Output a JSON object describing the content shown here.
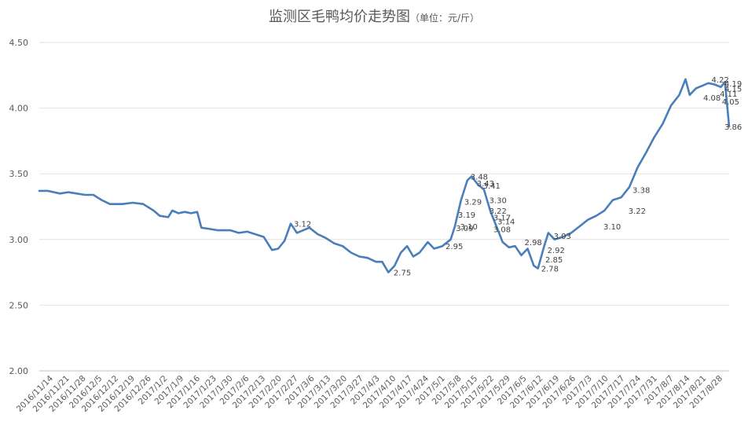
{
  "chart_data": {
    "type": "line",
    "title": "监测区毛鸭均价走势图",
    "subtitle": "（单位：元/斤）",
    "xlabel": "",
    "ylabel": "",
    "ylim": [
      2.0,
      4.5
    ],
    "yticks": [
      "2.00",
      "2.50",
      "3.00",
      "3.50",
      "4.00",
      "4.50"
    ],
    "grid": true,
    "legend": "none",
    "line_color": "#4a7ebb",
    "x_tick_labels": [
      "2016/11/14",
      "2016/11/21",
      "2016/11/28",
      "2016/12/5",
      "2016/12/12",
      "2016/12/19",
      "2016/12/26",
      "2017/1/2",
      "2017/1/9",
      "2017/1/16",
      "2017/1/23",
      "2017/1/30",
      "2017/2/6",
      "2017/2/13",
      "2017/2/20",
      "2017/2/27",
      "2017/3/6",
      "2017/3/13",
      "2017/3/20",
      "2017/3/27",
      "2017/4/3",
      "2017/4/10",
      "2017/4/17",
      "2017/4/24",
      "2017/5/1",
      "2017/5/8",
      "2017/5/15",
      "2017/5/22",
      "2017/5/29",
      "2017/6/5",
      "2017/6/12",
      "2017/6/19",
      "2017/6/26",
      "2017/7/3",
      "2017/7/10",
      "2017/7/17",
      "2017/7/24",
      "2017/7/31",
      "2017/8/7",
      "2017/8/14",
      "2017/8/21",
      "2017/8/28"
    ],
    "x_keypoints": [
      {
        "i": 0,
        "v": 3.37
      },
      {
        "i": 4,
        "v": 3.37
      },
      {
        "i": 10,
        "v": 3.35
      },
      {
        "i": 14,
        "v": 3.36
      },
      {
        "i": 18,
        "v": 3.35
      },
      {
        "i": 22,
        "v": 3.34
      },
      {
        "i": 26,
        "v": 3.34
      },
      {
        "i": 30,
        "v": 3.3
      },
      {
        "i": 34,
        "v": 3.27
      },
      {
        "i": 40,
        "v": 3.27
      },
      {
        "i": 45,
        "v": 3.28
      },
      {
        "i": 50,
        "v": 3.27
      },
      {
        "i": 55,
        "v": 3.22
      },
      {
        "i": 58,
        "v": 3.18
      },
      {
        "i": 62,
        "v": 3.17
      },
      {
        "i": 64,
        "v": 3.22
      },
      {
        "i": 67,
        "v": 3.2
      },
      {
        "i": 70,
        "v": 3.21
      },
      {
        "i": 73,
        "v": 3.2
      },
      {
        "i": 76,
        "v": 3.21
      },
      {
        "i": 78,
        "v": 3.09
      },
      {
        "i": 82,
        "v": 3.08
      },
      {
        "i": 86,
        "v": 3.07
      },
      {
        "i": 92,
        "v": 3.07
      },
      {
        "i": 96,
        "v": 3.05
      },
      {
        "i": 100,
        "v": 3.06
      },
      {
        "i": 104,
        "v": 3.04
      },
      {
        "i": 108,
        "v": 3.02
      },
      {
        "i": 112,
        "v": 2.92
      },
      {
        "i": 115,
        "v": 2.93
      },
      {
        "i": 118,
        "v": 2.99
      },
      {
        "i": 121,
        "v": 3.12
      },
      {
        "i": 124,
        "v": 3.05
      },
      {
        "i": 127,
        "v": 3.07
      },
      {
        "i": 130,
        "v": 3.09
      },
      {
        "i": 134,
        "v": 3.04
      },
      {
        "i": 138,
        "v": 3.01
      },
      {
        "i": 142,
        "v": 2.97
      },
      {
        "i": 146,
        "v": 2.95
      },
      {
        "i": 150,
        "v": 2.9
      },
      {
        "i": 154,
        "v": 2.87
      },
      {
        "i": 158,
        "v": 2.86
      },
      {
        "i": 162,
        "v": 2.83
      },
      {
        "i": 165,
        "v": 2.83
      },
      {
        "i": 168,
        "v": 2.75
      },
      {
        "i": 171,
        "v": 2.8
      },
      {
        "i": 174,
        "v": 2.9
      },
      {
        "i": 177,
        "v": 2.95
      },
      {
        "i": 180,
        "v": 2.87
      },
      {
        "i": 183,
        "v": 2.9
      },
      {
        "i": 187,
        "v": 2.98
      },
      {
        "i": 190,
        "v": 2.93
      },
      {
        "i": 194,
        "v": 2.95
      },
      {
        "i": 198,
        "v": 3.0
      },
      {
        "i": 200,
        "v": 3.1
      },
      {
        "i": 203,
        "v": 3.3
      },
      {
        "i": 206,
        "v": 3.45
      },
      {
        "i": 208,
        "v": 3.48
      },
      {
        "i": 211,
        "v": 3.42
      },
      {
        "i": 214,
        "v": 3.38
      },
      {
        "i": 217,
        "v": 3.22
      },
      {
        "i": 220,
        "v": 3.1
      },
      {
        "i": 223,
        "v": 2.98
      },
      {
        "i": 226,
        "v": 2.94
      },
      {
        "i": 229,
        "v": 2.95
      },
      {
        "i": 232,
        "v": 2.88
      },
      {
        "i": 235,
        "v": 2.93
      },
      {
        "i": 238,
        "v": 2.8
      },
      {
        "i": 240,
        "v": 2.78
      },
      {
        "i": 243,
        "v": 2.95
      },
      {
        "i": 245,
        "v": 3.05
      },
      {
        "i": 248,
        "v": 3.0
      },
      {
        "i": 252,
        "v": 3.02
      },
      {
        "i": 256,
        "v": 3.05
      },
      {
        "i": 260,
        "v": 3.1
      },
      {
        "i": 264,
        "v": 3.15
      },
      {
        "i": 268,
        "v": 3.18
      },
      {
        "i": 272,
        "v": 3.22
      },
      {
        "i": 276,
        "v": 3.3
      },
      {
        "i": 280,
        "v": 3.32
      },
      {
        "i": 284,
        "v": 3.4
      },
      {
        "i": 288,
        "v": 3.55
      },
      {
        "i": 292,
        "v": 3.66
      },
      {
        "i": 296,
        "v": 3.78
      },
      {
        "i": 300,
        "v": 3.88
      },
      {
        "i": 304,
        "v": 4.02
      },
      {
        "i": 308,
        "v": 4.1
      },
      {
        "i": 311,
        "v": 4.22
      },
      {
        "i": 313,
        "v": 4.1
      },
      {
        "i": 316,
        "v": 4.15
      },
      {
        "i": 319,
        "v": 4.17
      },
      {
        "i": 322,
        "v": 4.19
      },
      {
        "i": 325,
        "v": 4.18
      },
      {
        "i": 328,
        "v": 4.16
      },
      {
        "i": 330,
        "v": 4.2
      },
      {
        "i": 332,
        "v": 3.86
      }
    ],
    "data_labels": [
      {
        "i": 206,
        "text": "3.48"
      },
      {
        "i": 209,
        "text": "3.43"
      },
      {
        "i": 212,
        "text": "3.41"
      },
      {
        "i": 215,
        "text": "3.30"
      },
      {
        "i": 215,
        "text": "3.22"
      },
      {
        "i": 217,
        "text": "3.17"
      },
      {
        "i": 219,
        "text": "3.14"
      },
      {
        "i": 217,
        "text": "3.08"
      },
      {
        "i": 203,
        "text": "3.29"
      },
      {
        "i": 200,
        "text": "3.19"
      },
      {
        "i": 201,
        "text": "3.10"
      },
      {
        "i": 199,
        "text": "3.09"
      },
      {
        "i": 121,
        "text": "3.12"
      },
      {
        "i": 232,
        "text": "2.98"
      },
      {
        "i": 243,
        "text": "2.92"
      },
      {
        "i": 242,
        "text": "2.85"
      },
      {
        "i": 240,
        "text": "2.78"
      },
      {
        "i": 194,
        "text": "2.95"
      },
      {
        "i": 169,
        "text": "2.75"
      },
      {
        "i": 284,
        "text": "3.38"
      },
      {
        "i": 322,
        "text": "4.22"
      },
      {
        "i": 331,
        "text": "4.19"
      },
      {
        "i": 331,
        "text": "4.15"
      },
      {
        "i": 326,
        "text": "4.11"
      },
      {
        "i": 318,
        "text": "4.08"
      },
      {
        "i": 327,
        "text": "4.05"
      },
      {
        "i": 332,
        "text": "3.86"
      },
      {
        "i": 270,
        "text": "3.10"
      },
      {
        "i": 282,
        "text": "3.22"
      },
      {
        "i": 246,
        "text": "3.03"
      }
    ]
  }
}
